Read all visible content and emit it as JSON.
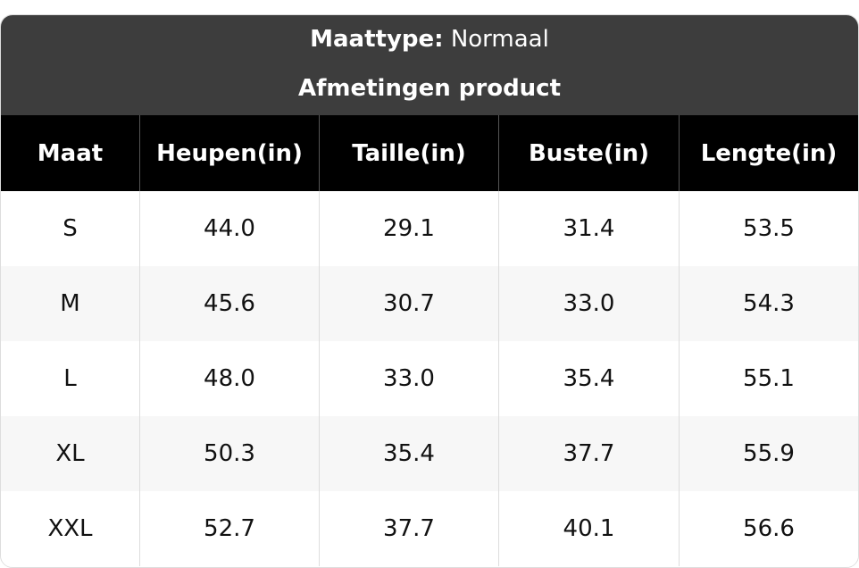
{
  "header": {
    "label": "Maattype:",
    "value": "Normaal",
    "subtitle": "Afmetingen product"
  },
  "table": {
    "columns": [
      "Maat",
      "Heupen(in)",
      "Taille(in)",
      "Buste(in)",
      "Lengte(in)"
    ],
    "rows": [
      [
        "S",
        "44.0",
        "29.1",
        "31.4",
        "53.5"
      ],
      [
        "M",
        "45.6",
        "30.7",
        "33.0",
        "54.3"
      ],
      [
        "L",
        "48.0",
        "33.0",
        "35.4",
        "55.1"
      ],
      [
        "XL",
        "50.3",
        "35.4",
        "37.7",
        "55.9"
      ],
      [
        "XXL",
        "52.7",
        "37.7",
        "40.1",
        "56.6"
      ]
    ]
  }
}
